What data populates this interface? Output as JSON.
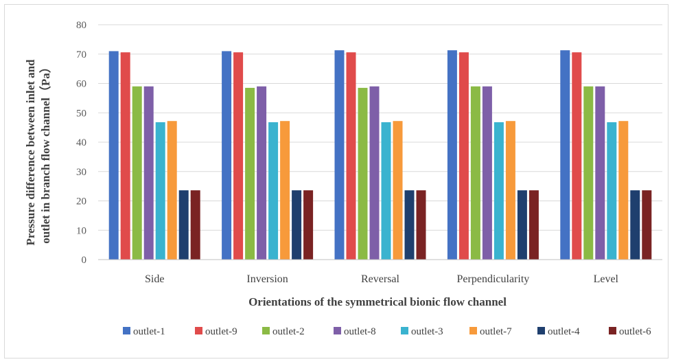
{
  "chart_data": {
    "type": "bar",
    "title": "",
    "xlabel": "Orientations of the symmetrical bionic flow channel",
    "ylabel_line1": "Pressure difference between inlet and",
    "ylabel_line2": "outlet in branch flow channel（Pa）",
    "ylim": [
      0,
      80
    ],
    "yticks": [
      0,
      10,
      20,
      30,
      40,
      50,
      60,
      70,
      80
    ],
    "grid": true,
    "legend_position": "bottom",
    "categories": [
      "Side",
      "Inversion",
      "Reversal",
      "Perpendicularity",
      "Level"
    ],
    "series": [
      {
        "name": "outlet-1",
        "color": "#4472c4",
        "values": [
          71.0,
          71.0,
          71.3,
          71.3,
          71.3
        ]
      },
      {
        "name": "outlet-9",
        "color": "#e04b4b",
        "values": [
          70.6,
          70.6,
          70.6,
          70.6,
          70.6
        ]
      },
      {
        "name": "outlet-2",
        "color": "#8bba45",
        "values": [
          59.0,
          58.5,
          58.5,
          59.0,
          59.0
        ]
      },
      {
        "name": "outlet-8",
        "color": "#7e5fa8",
        "values": [
          59.0,
          59.0,
          59.0,
          59.0,
          59.0
        ]
      },
      {
        "name": "outlet-3",
        "color": "#3ab3cf",
        "values": [
          46.8,
          46.8,
          46.8,
          46.8,
          46.8
        ]
      },
      {
        "name": "outlet-7",
        "color": "#f79a3b",
        "values": [
          47.2,
          47.2,
          47.2,
          47.2,
          47.2
        ]
      },
      {
        "name": "outlet-4",
        "color": "#1f3f6e",
        "values": [
          23.6,
          23.6,
          23.6,
          23.6,
          23.6
        ]
      },
      {
        "name": "outlet-6",
        "color": "#7a2323",
        "values": [
          23.6,
          23.6,
          23.6,
          23.6,
          23.6
        ]
      }
    ]
  }
}
